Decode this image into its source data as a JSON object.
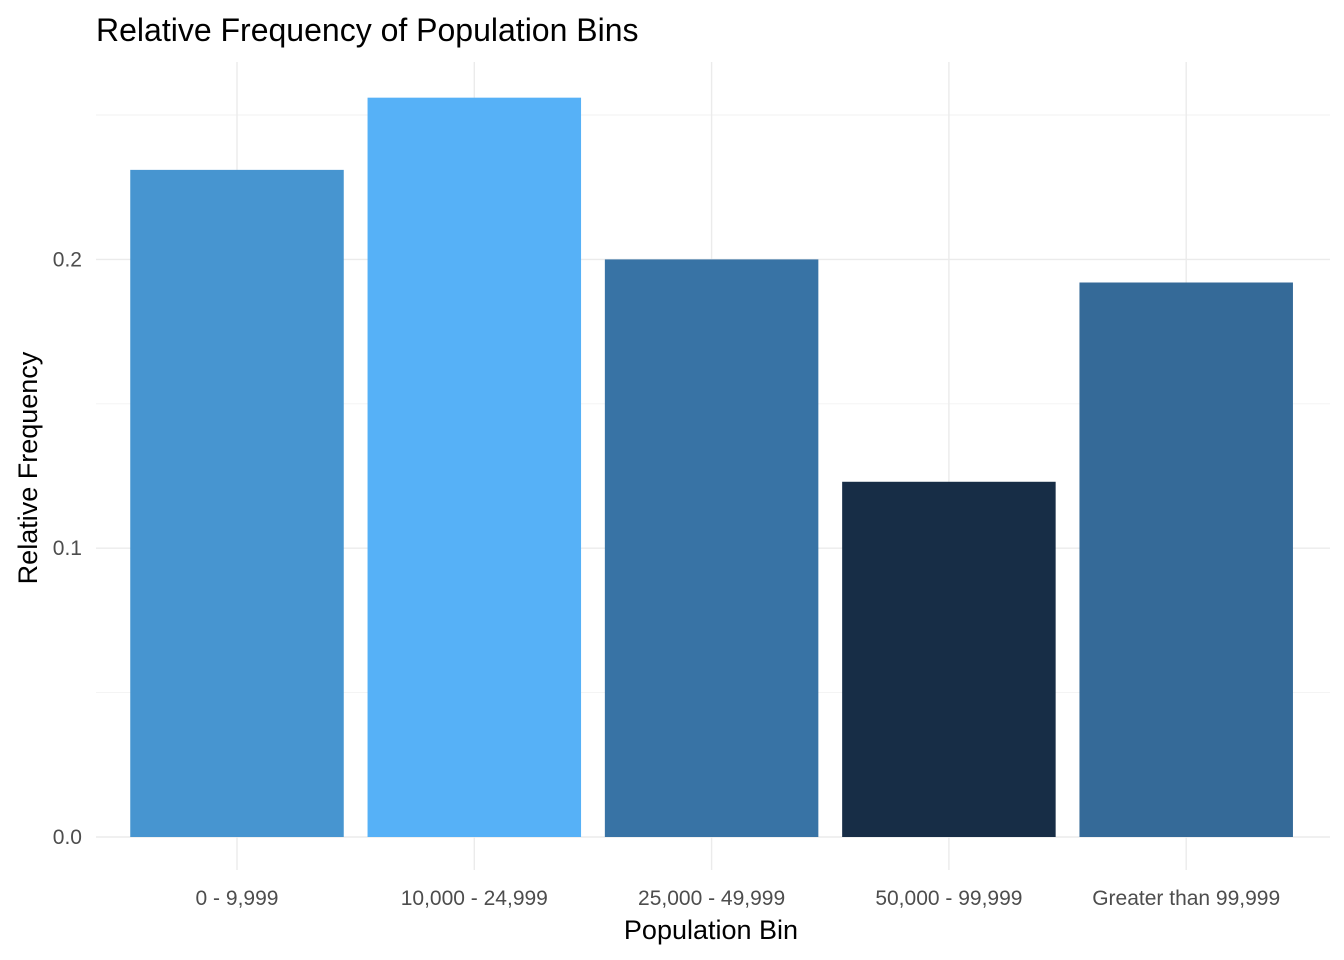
{
  "chart_data": {
    "type": "bar",
    "title": "Relative Frequency of Population Bins",
    "xlabel": "Population Bin",
    "ylabel": "Relative Frequency",
    "categories": [
      "0 - 9,999",
      "10,000 - 24,999",
      "25,000 - 49,999",
      "50,000 - 99,999",
      "Greater than 99,999"
    ],
    "values": [
      0.231,
      0.256,
      0.2,
      0.123,
      0.192
    ],
    "colors": [
      "#4795d0",
      "#56b1f7",
      "#3873a5",
      "#172d46",
      "#356a98"
    ],
    "ylim": [
      0,
      0.27
    ],
    "yticks": [
      0.0,
      0.1,
      0.2
    ],
    "ytick_labels": [
      "0.0",
      "0.1",
      "0.2"
    ],
    "grid": true,
    "legend": "none"
  }
}
